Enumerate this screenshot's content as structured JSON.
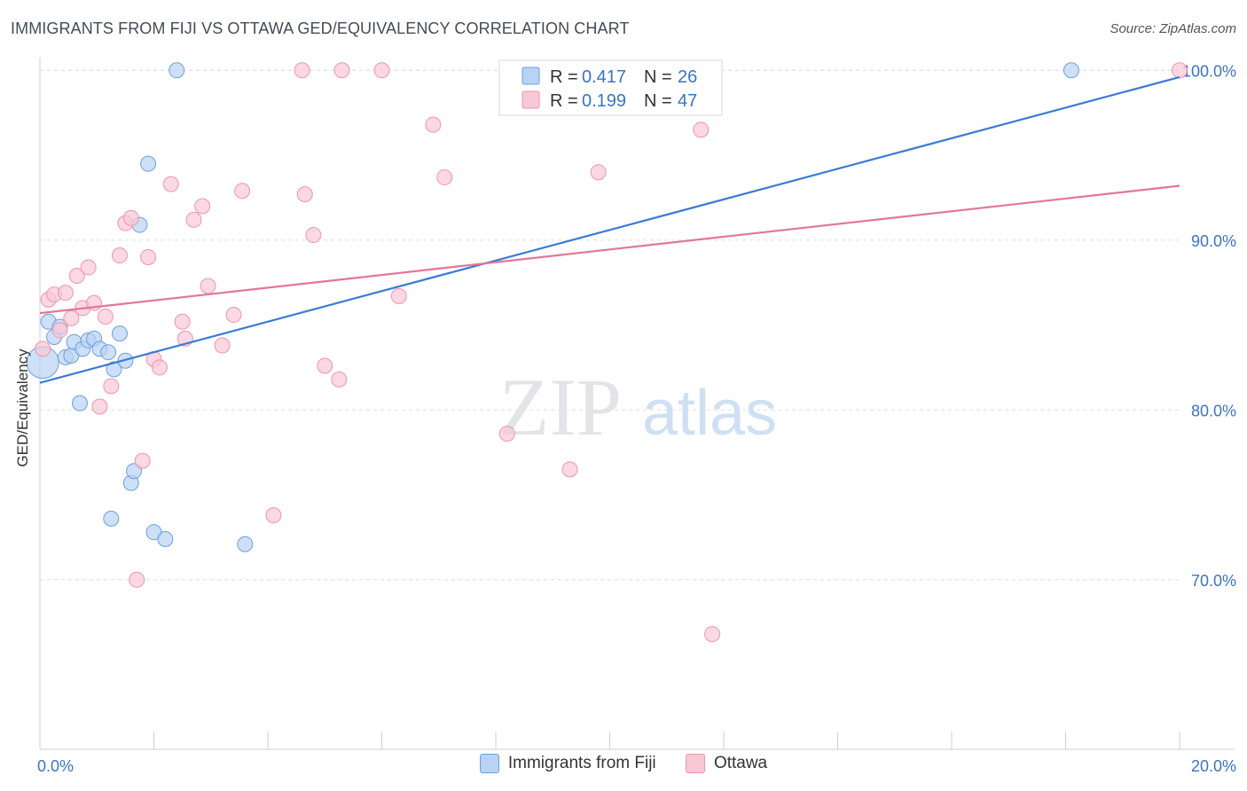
{
  "header": {
    "title": "IMMIGRANTS FROM FIJI VS OTTAWA GED/EQUIVALENCY CORRELATION CHART",
    "source": "Source: ZipAtlas.com"
  },
  "watermark": {
    "zip": "ZIP",
    "atlas": "atlas"
  },
  "colors": {
    "blue_fill": "#b8d3f4",
    "blue_stroke": "#6c9fdc",
    "blue_line": "#3a7bd5",
    "pink_fill": "#f9c8d6",
    "pink_stroke": "#ec95b0",
    "pink_line": "#e2769b",
    "tick_label": "#3a74c4",
    "grid": "#dddddd"
  },
  "legend_top": {
    "rows": [
      {
        "r_label": "R =",
        "r_value": "0.417",
        "n_label": "N =",
        "n_value": "26"
      },
      {
        "r_label": "R =",
        "r_value": "0.199",
        "n_label": "N =",
        "n_value": "47"
      }
    ]
  },
  "chart_data": {
    "type": "scatter",
    "title": "IMMIGRANTS FROM FIJI VS OTTAWA GED/EQUIVALENCY CORRELATION CHART",
    "xlabel": "",
    "ylabel": "GED/Equivalency",
    "xlim": [
      0,
      20
    ],
    "ylim": [
      60.0,
      101.0
    ],
    "x_tick_labels": [
      "0.0%",
      "20.0%"
    ],
    "y_ticks": [
      70,
      80,
      90,
      100
    ],
    "y_tick_labels": [
      "70.0%",
      "80.0%",
      "90.0%",
      "100.0%"
    ],
    "grid": true,
    "legend_position": "bottom",
    "series": [
      {
        "name": "Immigrants from Fiji",
        "r": 0.417,
        "n": 26,
        "trend": [
          [
            0,
            81.6
          ],
          [
            20,
            99.6
          ]
        ],
        "points": [
          [
            0.05,
            82.8
          ],
          [
            0.15,
            85.2
          ],
          [
            0.25,
            84.3
          ],
          [
            0.35,
            84.9
          ],
          [
            0.45,
            83.1
          ],
          [
            0.55,
            83.2
          ],
          [
            0.6,
            84.0
          ],
          [
            0.7,
            80.4
          ],
          [
            0.75,
            83.6
          ],
          [
            0.85,
            84.1
          ],
          [
            0.95,
            84.2
          ],
          [
            1.05,
            83.6
          ],
          [
            1.2,
            83.4
          ],
          [
            1.3,
            82.4
          ],
          [
            1.4,
            84.5
          ],
          [
            1.5,
            82.9
          ],
          [
            1.6,
            75.7
          ],
          [
            1.65,
            76.4
          ],
          [
            1.25,
            73.6
          ],
          [
            1.75,
            90.9
          ],
          [
            1.9,
            94.5
          ],
          [
            2.0,
            72.8
          ],
          [
            2.2,
            72.4
          ],
          [
            2.4,
            100.0
          ],
          [
            3.6,
            72.1
          ],
          [
            18.1,
            100.0
          ]
        ]
      },
      {
        "name": "Ottawa",
        "r": 0.199,
        "n": 47,
        "trend": [
          [
            0,
            85.7
          ],
          [
            20,
            93.2
          ]
        ],
        "points": [
          [
            0.05,
            83.6
          ],
          [
            0.15,
            86.5
          ],
          [
            0.25,
            86.8
          ],
          [
            0.35,
            84.7
          ],
          [
            0.45,
            86.9
          ],
          [
            0.55,
            85.4
          ],
          [
            0.65,
            87.9
          ],
          [
            0.75,
            86.0
          ],
          [
            0.85,
            88.4
          ],
          [
            0.95,
            86.3
          ],
          [
            1.05,
            80.2
          ],
          [
            1.15,
            85.5
          ],
          [
            1.25,
            81.4
          ],
          [
            1.4,
            89.1
          ],
          [
            1.5,
            91.0
          ],
          [
            1.6,
            91.3
          ],
          [
            1.7,
            70.0
          ],
          [
            1.8,
            77.0
          ],
          [
            1.9,
            89.0
          ],
          [
            2.0,
            83.0
          ],
          [
            2.1,
            82.5
          ],
          [
            2.3,
            93.3
          ],
          [
            2.5,
            85.2
          ],
          [
            2.55,
            84.2
          ],
          [
            2.7,
            91.2
          ],
          [
            2.85,
            92.0
          ],
          [
            2.95,
            87.3
          ],
          [
            3.2,
            83.8
          ],
          [
            3.4,
            85.6
          ],
          [
            3.55,
            92.9
          ],
          [
            4.1,
            73.8
          ],
          [
            4.6,
            100.0
          ],
          [
            4.65,
            92.7
          ],
          [
            4.8,
            90.3
          ],
          [
            5.0,
            82.6
          ],
          [
            5.25,
            81.8
          ],
          [
            5.3,
            100.0
          ],
          [
            6.0,
            100.0
          ],
          [
            6.3,
            86.7
          ],
          [
            6.9,
            96.8
          ],
          [
            7.1,
            93.7
          ],
          [
            8.2,
            78.6
          ],
          [
            9.3,
            76.5
          ],
          [
            9.8,
            94.0
          ],
          [
            11.6,
            96.5
          ],
          [
            11.8,
            66.8
          ],
          [
            20.0,
            100.0
          ]
        ]
      }
    ]
  }
}
